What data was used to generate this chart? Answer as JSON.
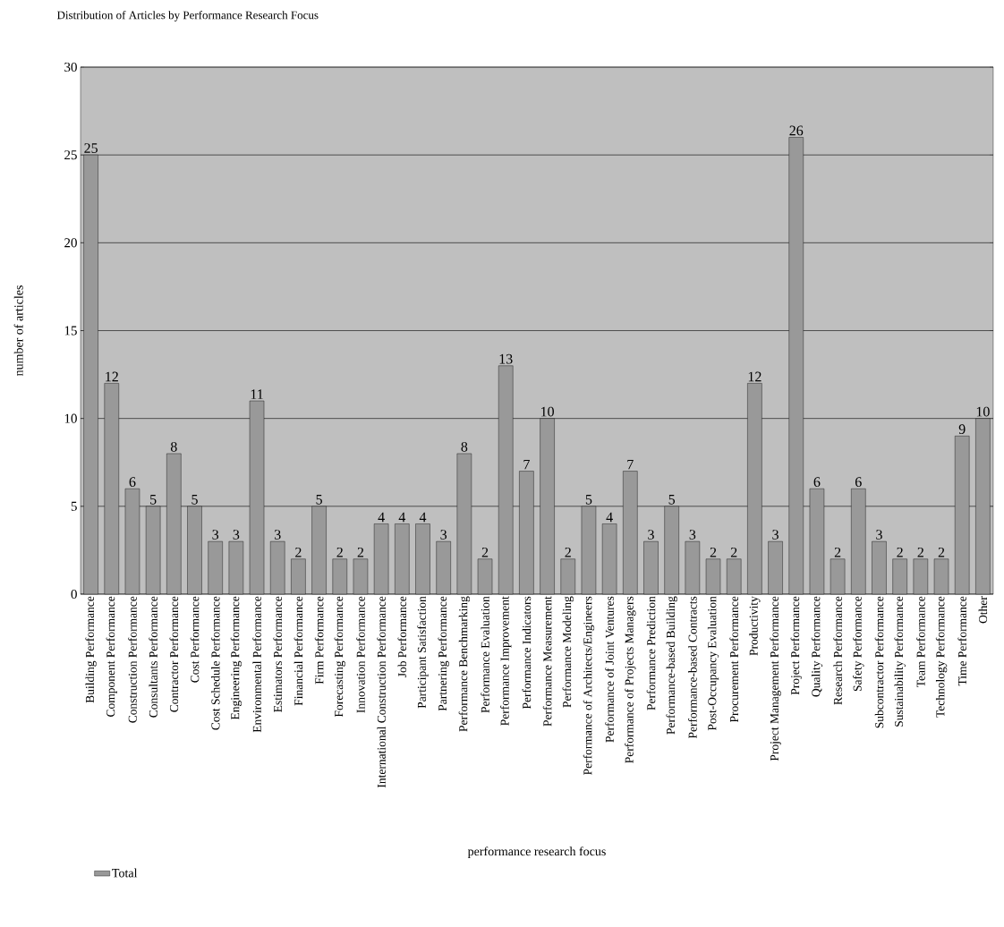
{
  "chart_data": {
    "type": "bar",
    "title": "Distribution of Articles by Performance Research Focus",
    "xlabel": "performance  research  focus",
    "ylabel": "number of articles",
    "categories": [
      "Building Performance",
      "Component Performance",
      "Construction Performance",
      "Consultants Performance",
      "Contractor Performance",
      "Cost Performance",
      "Cost Schedule Performance",
      "Engineering Performance",
      "Environmental Performance",
      "Estimators Performance",
      "Financial Performance",
      "Firm Performance",
      "Forecasting Performance",
      "Innovation Performance",
      "International Construction Performance",
      "Job Performance",
      "Participant Satisfaction",
      "Partnering Performance",
      "Performance Benchmarking",
      "Performance Evaluation",
      "Performance Improvement",
      "Performance Indicators",
      "Performance Measurement",
      "Performance Modeling",
      "Performance of Architects/Engineers",
      "Performance of Joint Ventures",
      "Performance of Projects Managers",
      "Performance Prediction",
      "Performance-based Building",
      "Performance-based Contracts",
      "Post-Occupancy Evaluation",
      "Procurement  Performance",
      "Productivity",
      "Project Management Performance",
      "Project Performance",
      "Quality Performance",
      "Research Performance",
      "Safety Performance",
      "Subcontractor Performance",
      "Sustainability Performance",
      "Team Performance",
      "Technology Performance",
      "Time Performance",
      "Other"
    ],
    "series": [
      {
        "name": "Total",
        "color": "#999999",
        "values": [
          25,
          12,
          6,
          5,
          8,
          5,
          3,
          3,
          11,
          3,
          2,
          5,
          2,
          2,
          4,
          4,
          4,
          3,
          8,
          2,
          13,
          7,
          10,
          2,
          5,
          4,
          7,
          3,
          5,
          3,
          2,
          2,
          12,
          3,
          26,
          6,
          2,
          6,
          3,
          2,
          2,
          2,
          9,
          10
        ]
      }
    ],
    "ylim": [
      0,
      30
    ],
    "yticks": [
      0,
      5,
      10,
      15,
      20,
      25,
      30
    ],
    "grid": "y",
    "legend": "bottom left",
    "data_labels": true
  }
}
